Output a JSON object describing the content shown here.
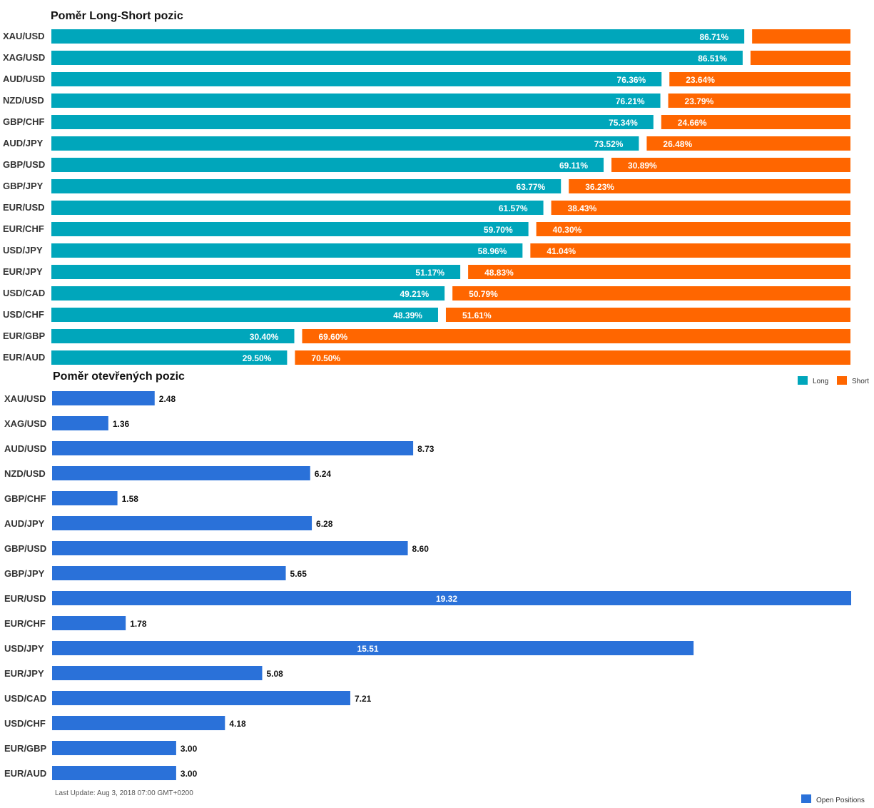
{
  "colors": {
    "long": "#00a6bb",
    "short": "#ff6600",
    "open": "#2a71d9"
  },
  "last_update": "Last Update: Aug 3, 2018 07:00 GMT+0200",
  "chart_data": [
    {
      "type": "bar",
      "orientation": "horizontal",
      "stacked": "percent",
      "title": "Poměr Long-Short pozic",
      "categories": [
        "XAU/USD",
        "XAG/USD",
        "AUD/USD",
        "NZD/USD",
        "GBP/CHF",
        "AUD/JPY",
        "GBP/USD",
        "GBP/JPY",
        "EUR/USD",
        "EUR/CHF",
        "USD/JPY",
        "EUR/JPY",
        "USD/CAD",
        "USD/CHF",
        "EUR/GBP",
        "EUR/AUD"
      ],
      "series": [
        {
          "name": "Long",
          "values": [
            86.71,
            86.51,
            76.36,
            76.21,
            75.34,
            73.52,
            69.11,
            63.77,
            61.57,
            59.7,
            58.96,
            51.17,
            49.21,
            48.39,
            30.4,
            29.5
          ],
          "labels": [
            "86.71%",
            "86.51%",
            "76.36%",
            "76.21%",
            "75.34%",
            "73.52%",
            "69.11%",
            "63.77%",
            "61.57%",
            "59.70%",
            "58.96%",
            "51.17%",
            "49.21%",
            "48.39%",
            "30.40%",
            "29.50%"
          ]
        },
        {
          "name": "Short",
          "values": [
            13.29,
            13.49,
            23.64,
            23.79,
            24.66,
            26.48,
            30.89,
            36.23,
            38.43,
            40.3,
            41.04,
            48.83,
            50.79,
            51.61,
            69.6,
            70.5
          ],
          "labels": [
            "",
            "",
            "23.64%",
            "23.79%",
            "24.66%",
            "26.48%",
            "30.89%",
            "36.23%",
            "38.43%",
            "40.30%",
            "41.04%",
            "48.83%",
            "50.79%",
            "51.61%",
            "69.60%",
            "70.50%"
          ]
        }
      ],
      "legend": "bottom-right"
    },
    {
      "type": "bar",
      "orientation": "horizontal",
      "title": "Poměr otevřených pozic",
      "categories": [
        "XAU/USD",
        "XAG/USD",
        "AUD/USD",
        "NZD/USD",
        "GBP/CHF",
        "AUD/JPY",
        "GBP/USD",
        "GBP/JPY",
        "EUR/USD",
        "EUR/CHF",
        "USD/JPY",
        "EUR/JPY",
        "USD/CAD",
        "USD/CHF",
        "EUR/GBP",
        "EUR/AUD"
      ],
      "series": [
        {
          "name": "Open Positions",
          "values": [
            2.48,
            1.36,
            8.73,
            6.24,
            1.58,
            6.28,
            8.6,
            5.65,
            19.32,
            1.78,
            15.51,
            5.08,
            7.21,
            4.18,
            3.0,
            3.0
          ],
          "labels": [
            "2.48",
            "1.36",
            "8.73",
            "6.24",
            "1.58",
            "6.28",
            "8.60",
            "5.65",
            "19.32",
            "1.78",
            "15.51",
            "5.08",
            "7.21",
            "4.18",
            "3.00",
            "3.00"
          ]
        }
      ],
      "legend": "bottom-right"
    }
  ]
}
